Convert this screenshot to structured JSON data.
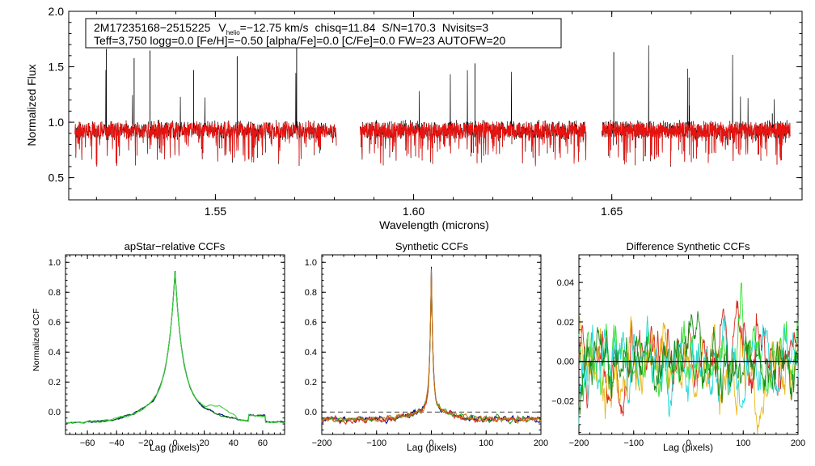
{
  "chart_data": [
    {
      "type": "line",
      "id": "spectrum",
      "title": "",
      "xlabel": "Wavelength (microns)",
      "ylabel": "Normalized Flux",
      "xlim": [
        1.513,
        1.698
      ],
      "ylim": [
        0.3,
        2.0
      ],
      "xticks": [
        1.55,
        1.6,
        1.65
      ],
      "xtick_labels": [
        "1.55",
        "1.60",
        "1.65"
      ],
      "yticks": [
        0.5,
        1.0,
        1.5,
        2.0
      ],
      "ytick_labels": [
        "0.5",
        "1.0",
        "1.5",
        "2.0"
      ],
      "series": [
        {
          "name": "observed",
          "color": "#000000"
        },
        {
          "name": "model",
          "color": "#e8120f"
        }
      ],
      "chip_ranges": [
        [
          1.5145,
          1.5805
        ],
        [
          1.5865,
          1.6435
        ],
        [
          1.6475,
          1.695
        ]
      ],
      "annotation": {
        "star_id": "2M17235168−2515225",
        "v_label": "V",
        "v_sub": "helio",
        "v_value": "=−12.75 km/s",
        "chisq": "chisq=11.84",
        "snr": "S/N=170.3",
        "nvisits": "Nvisits=3",
        "line2": "Teff=3,750 logg=0.0 [Fe/H]=−0.50 [alpha/Fe]=0.0 [C/Fe]=0.0 FW=23 AUTOFW=20"
      }
    },
    {
      "type": "line",
      "id": "ccf1",
      "title": "apStar−relative CCFs",
      "xlabel": "Lag (pixels)",
      "ylabel": "Normalized CCF",
      "xlim": [
        -75,
        75
      ],
      "ylim": [
        -0.15,
        1.05
      ],
      "xticks": [
        -60,
        -40,
        -20,
        0,
        20,
        40,
        60
      ],
      "xtick_labels": [
        "−60",
        "−40",
        "−20",
        "0",
        "20",
        "40",
        "60"
      ],
      "yticks": [
        0.0,
        0.2,
        0.4,
        0.6,
        0.8,
        1.0
      ],
      "ytick_labels": [
        "0.0",
        "0.2",
        "0.4",
        "0.6",
        "0.8",
        "1.0"
      ],
      "series": [
        {
          "name": "ccf-1",
          "color": "#00008b"
        },
        {
          "name": "ccf-2",
          "color": "#0b7a0b"
        },
        {
          "name": "ccf-3",
          "color": "#3ccf3c"
        }
      ]
    },
    {
      "type": "line",
      "id": "ccf2",
      "title": "Synthetic CCFs",
      "xlabel": "Lag (pixels)",
      "ylabel": "",
      "xlim": [
        -200,
        200
      ],
      "ylim": [
        -0.15,
        1.05
      ],
      "xticks": [
        -200,
        -100,
        0,
        100,
        200
      ],
      "xtick_labels": [
        "−200",
        "−100",
        "0",
        "100",
        "200"
      ],
      "yticks": [
        0.0,
        0.2,
        0.4,
        0.6,
        0.8,
        1.0
      ],
      "ytick_labels": [
        "0.0",
        "0.2",
        "0.4",
        "0.6",
        "0.8",
        "1.0"
      ],
      "series": [
        {
          "name": "ccf-1",
          "color": "#00008b"
        },
        {
          "name": "ccf-2",
          "color": "#1f9a1f"
        },
        {
          "name": "ccf-3",
          "color": "#d62a1f"
        },
        {
          "name": "ccf-4",
          "color": "#c47a12"
        }
      ]
    },
    {
      "type": "line",
      "id": "ccf3",
      "title": "Difference Synthetic CCFs",
      "xlabel": "Lag (pixels)",
      "ylabel": "",
      "xlim": [
        -200,
        200
      ],
      "ylim": [
        -0.037,
        0.054
      ],
      "xticks": [
        -200,
        -100,
        0,
        100,
        200
      ],
      "xtick_labels": [
        "−200",
        "−100",
        "0",
        "100",
        "200"
      ],
      "yticks": [
        -0.02,
        0.0,
        0.02,
        0.04
      ],
      "ytick_labels": [
        "−0.02",
        "0.00",
        "0.02",
        "0.04"
      ],
      "series": [
        {
          "name": "diff-1",
          "color": "#d62a1f"
        },
        {
          "name": "diff-2",
          "color": "#2ee02e"
        },
        {
          "name": "diff-3",
          "color": "#e8b81a"
        },
        {
          "name": "diff-4",
          "color": "#25d9d9"
        },
        {
          "name": "diff-5",
          "color": "#1a8a1a"
        }
      ]
    }
  ]
}
